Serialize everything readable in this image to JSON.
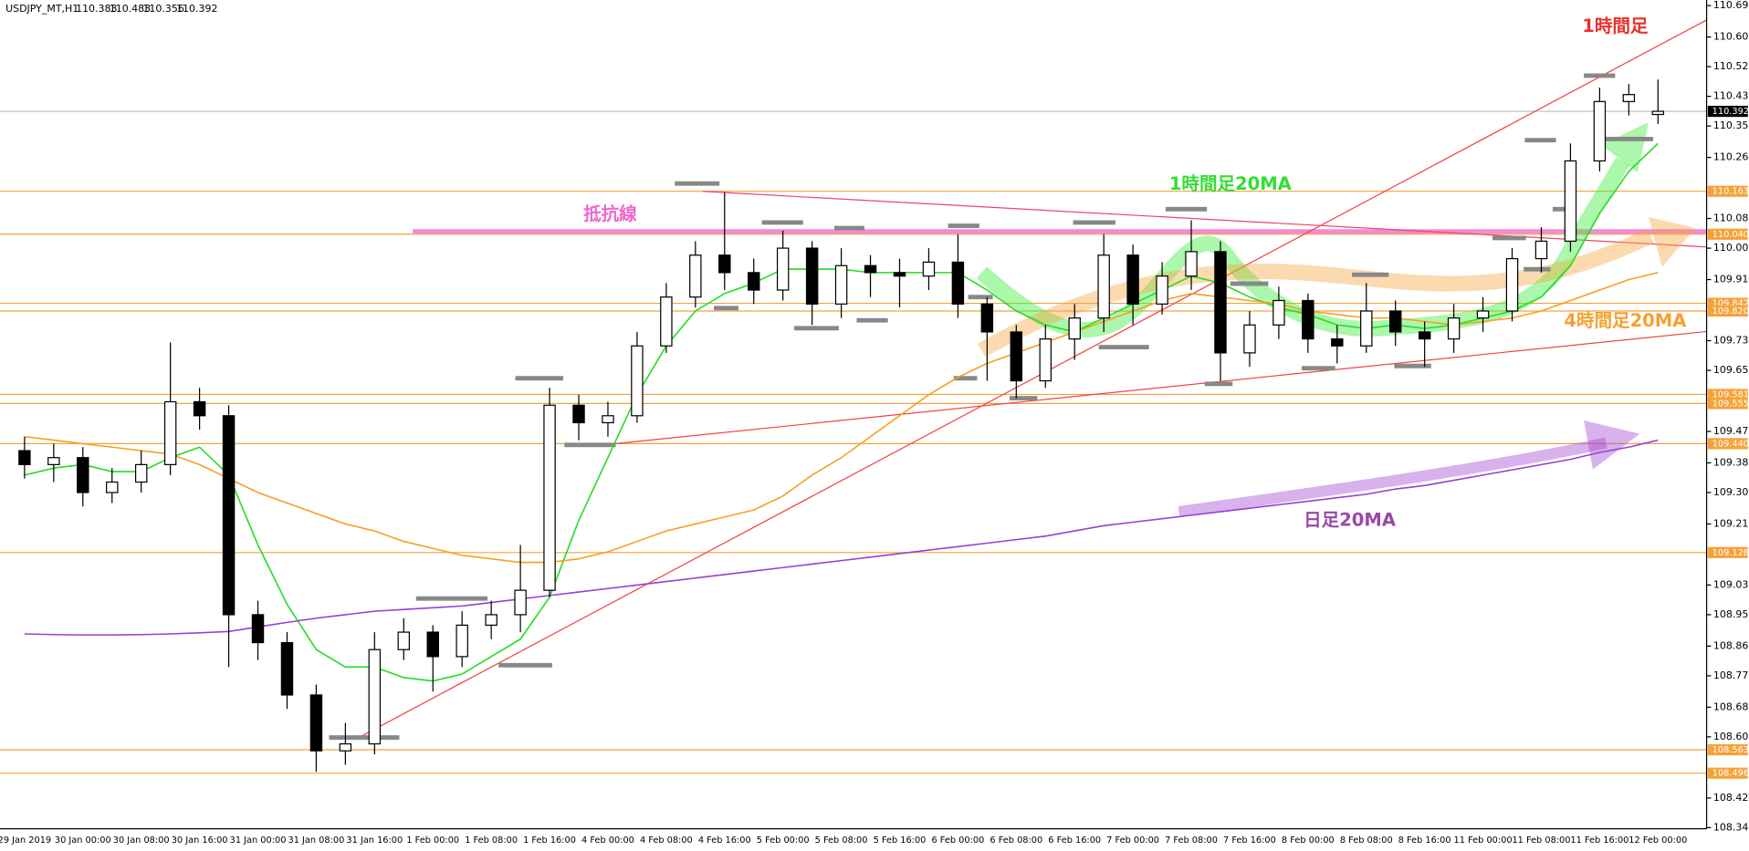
{
  "header": {
    "symbol": "USDJPY_MT,H1"
  },
  "chart_data": {
    "type": "candlestick",
    "xlabels": [
      "29 Jan 2019",
      "30 Jan 00:00",
      "30 Jan 08:00",
      "30 Jan 16:00",
      "31 Jan 00:00",
      "31 Jan 08:00",
      "31 Jan 16:00",
      "1 Feb 00:00",
      "1 Feb 08:00",
      "1 Feb 16:00",
      "4 Feb 00:00",
      "4 Feb 08:00",
      "4 Feb 16:00",
      "5 Feb 00:00",
      "5 Feb 08:00",
      "5 Feb 16:00",
      "6 Feb 00:00",
      "6 Feb 08:00",
      "6 Feb 16:00",
      "7 Feb 00:00",
      "7 Feb 08:00",
      "7 Feb 16:00",
      "8 Feb 00:00",
      "8 Feb 08:00",
      "8 Feb 16:00",
      "11 Feb 00:00",
      "11 Feb 08:00",
      "11 Feb 16:00",
      "12 Feb 00:00"
    ],
    "open": [
      109.42,
      109.38,
      109.4,
      109.3,
      109.33,
      109.38,
      109.56,
      109.52,
      108.95,
      108.87,
      108.72,
      108.56,
      108.58,
      108.85,
      108.9,
      108.83,
      108.92,
      108.95,
      109.02,
      109.55,
      109.5,
      109.52,
      109.72,
      109.86,
      109.98,
      109.93,
      109.88,
      110.0,
      109.84,
      109.95,
      109.93,
      109.92,
      109.96,
      109.84,
      109.76,
      109.62,
      109.74,
      109.8,
      109.98,
      109.84,
      109.92,
      109.99,
      109.7,
      109.78,
      109.85,
      109.74,
      109.72,
      109.82,
      109.76,
      109.74,
      109.8,
      109.82,
      109.97,
      110.02,
      110.25,
      110.42,
      110.383
    ],
    "high": [
      109.46,
      109.44,
      109.43,
      109.37,
      109.42,
      109.73,
      109.6,
      109.55,
      108.99,
      108.9,
      108.75,
      108.64,
      108.9,
      108.94,
      108.92,
      108.96,
      108.99,
      109.15,
      109.6,
      109.58,
      109.56,
      109.76,
      109.9,
      110.02,
      110.16,
      109.97,
      110.05,
      110.02,
      110.0,
      109.98,
      109.97,
      110.0,
      110.04,
      109.86,
      109.78,
      109.78,
      109.84,
      110.04,
      110.01,
      109.96,
      110.08,
      110.02,
      109.82,
      109.89,
      109.87,
      109.78,
      109.9,
      109.85,
      109.79,
      109.84,
      109.86,
      110.0,
      110.06,
      110.3,
      110.46,
      110.47,
      110.483
    ],
    "low": [
      109.34,
      109.33,
      109.26,
      109.27,
      109.3,
      109.35,
      109.48,
      108.8,
      108.82,
      108.68,
      108.5,
      108.52,
      108.55,
      108.82,
      108.73,
      108.8,
      108.88,
      108.9,
      109.0,
      109.45,
      109.46,
      109.5,
      109.7,
      109.83,
      109.88,
      109.84,
      109.85,
      109.78,
      109.8,
      109.86,
      109.83,
      109.88,
      109.8,
      109.62,
      109.57,
      109.6,
      109.68,
      109.76,
      109.78,
      109.81,
      109.88,
      109.62,
      109.66,
      109.74,
      109.7,
      109.67,
      109.7,
      109.72,
      109.66,
      109.7,
      109.76,
      109.79,
      109.93,
      109.99,
      110.22,
      110.38,
      110.356
    ],
    "close": [
      109.38,
      109.4,
      109.3,
      109.33,
      109.38,
      109.56,
      109.52,
      108.95,
      108.87,
      108.72,
      108.56,
      108.58,
      108.85,
      108.9,
      108.83,
      108.92,
      108.95,
      109.02,
      109.55,
      109.5,
      109.52,
      109.72,
      109.86,
      109.98,
      109.93,
      109.88,
      110.0,
      109.84,
      109.95,
      109.93,
      109.92,
      109.96,
      109.84,
      109.76,
      109.62,
      109.74,
      109.8,
      109.98,
      109.84,
      109.92,
      109.99,
      109.7,
      109.78,
      109.85,
      109.74,
      109.72,
      109.82,
      109.76,
      109.74,
      109.8,
      109.82,
      109.97,
      110.02,
      110.25,
      110.42,
      110.44,
      110.392
    ],
    "series": [
      {
        "name": "1時間足20MA",
        "color": "#22dd22",
        "values": [
          109.35,
          109.37,
          109.38,
          109.36,
          109.36,
          109.4,
          109.43,
          109.35,
          109.15,
          108.98,
          108.85,
          108.8,
          108.8,
          108.77,
          108.76,
          108.78,
          108.83,
          108.88,
          109.0,
          109.22,
          109.4,
          109.58,
          109.72,
          109.82,
          109.87,
          109.9,
          109.94,
          109.94,
          109.94,
          109.93,
          109.93,
          109.93,
          109.93,
          109.88,
          109.82,
          109.78,
          109.76,
          109.8,
          109.84,
          109.88,
          109.92,
          109.9,
          109.86,
          109.83,
          109.81,
          109.78,
          109.77,
          109.78,
          109.77,
          109.78,
          109.8,
          109.82,
          109.86,
          109.95,
          110.1,
          110.22,
          110.3
        ]
      },
      {
        "name": "4時間足20MA",
        "color": "#f5a020",
        "values": [
          109.46,
          109.45,
          109.44,
          109.43,
          109.42,
          109.41,
          109.38,
          109.34,
          109.3,
          109.27,
          109.24,
          109.21,
          109.19,
          109.16,
          109.14,
          109.12,
          109.11,
          109.1,
          109.1,
          109.11,
          109.13,
          109.16,
          109.19,
          109.21,
          109.23,
          109.25,
          109.29,
          109.35,
          109.4,
          109.46,
          109.52,
          109.58,
          109.63,
          109.67,
          109.7,
          109.73,
          109.76,
          109.79,
          109.82,
          109.85,
          109.87,
          109.86,
          109.85,
          109.84,
          109.82,
          109.81,
          109.8,
          109.8,
          109.79,
          109.78,
          109.79,
          109.8,
          109.82,
          109.85,
          109.88,
          109.91,
          109.93
        ]
      },
      {
        "name": "日足20MA",
        "color": "#9a3fd0",
        "values": [
          108.895,
          108.893,
          108.892,
          108.892,
          108.893,
          108.895,
          108.898,
          108.902,
          108.915,
          108.928,
          108.94,
          108.95,
          108.96,
          108.965,
          108.97,
          108.975,
          108.985,
          108.995,
          109.005,
          109.015,
          109.025,
          109.035,
          109.045,
          109.055,
          109.065,
          109.075,
          109.085,
          109.095,
          109.105,
          109.115,
          109.125,
          109.135,
          109.145,
          109.155,
          109.165,
          109.175,
          109.19,
          109.205,
          109.215,
          109.225,
          109.235,
          109.245,
          109.255,
          109.265,
          109.275,
          109.285,
          109.295,
          109.31,
          109.32,
          109.335,
          109.35,
          109.365,
          109.38,
          109.395,
          109.415,
          109.43,
          109.45
        ]
      }
    ],
    "ylim": [
      108.34,
      110.695
    ],
    "yticks": [
      110.695,
      110.605,
      {
        "value": 110.52,
        "label": "110.520"
      },
      110.435,
      {
        "value": 110.35,
        "label": "110.350"
      },
      {
        "value": 110.26,
        "label": "110.260"
      },
      110.085,
      {
        "value": 110,
        "label": "110.000"
      },
      {
        "value": 109.91,
        "label": "109.910"
      },
      109.735,
      {
        "value": 109.65,
        "label": "109.650"
      },
      109.475,
      109.385,
      {
        "value": 109.3,
        "label": "109.300"
      },
      {
        "value": 109.21,
        "label": "109.210"
      },
      109.035,
      {
        "value": 108.95,
        "label": "108.950"
      },
      {
        "value": 108.86,
        "label": "108.860"
      },
      108.775,
      108.685,
      {
        "value": 108.6,
        "label": "108.600"
      },
      108.425,
      {
        "value": 108.34,
        "label": "108.340"
      }
    ],
    "levels": [
      110.163,
      {
        "value": 110.04,
        "label": "110.040"
      },
      109.842,
      {
        "value": 109.82,
        "label": "109.820"
      },
      109.581,
      109.555,
      {
        "value": 109.44,
        "label": "109.440"
      },
      109.128,
      108.563,
      108.496
    ],
    "level_color": "#f5a23a",
    "annotations": [
      "1時間足",
      "抵抗線"
    ]
  }
}
